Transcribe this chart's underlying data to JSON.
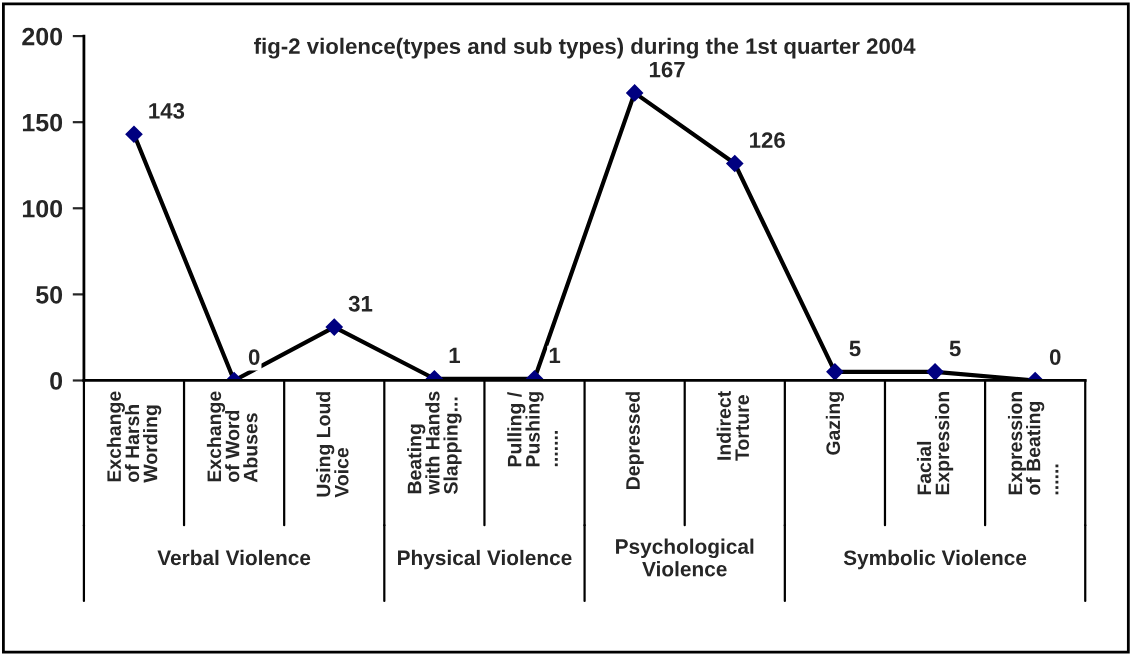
{
  "chart_data": {
    "type": "line",
    "title": "fig-2 violence(types and sub types) during the 1st quarter 2004",
    "categories": [
      "Exchange\nof Harsh\nWording",
      "Exchange\nof Word\nAbuses",
      "Using Loud\nVoice",
      "Beating\nwith Hands\nSlapping...",
      "Pulling /\nPushing\n.......",
      "Depressed",
      "Indirect\nTorture",
      "Gazing",
      "Facial\nExpression",
      "Expression\nof Beating\n......"
    ],
    "series": [
      {
        "color": "#000000",
        "values": [
          143,
          0,
          31,
          1,
          1,
          167,
          126,
          5,
          5,
          0
        ]
      }
    ],
    "ylim": [
      0,
      200
    ],
    "yticks": [
      0,
      50,
      100,
      150,
      200
    ],
    "data_labels": true,
    "marker": "diamond",
    "grid": false,
    "legend": false,
    "annotations": [
      "Verbal Violence",
      "Physical Violence",
      "Psychological\nViolence",
      "Symbolic Violence"
    ]
  }
}
